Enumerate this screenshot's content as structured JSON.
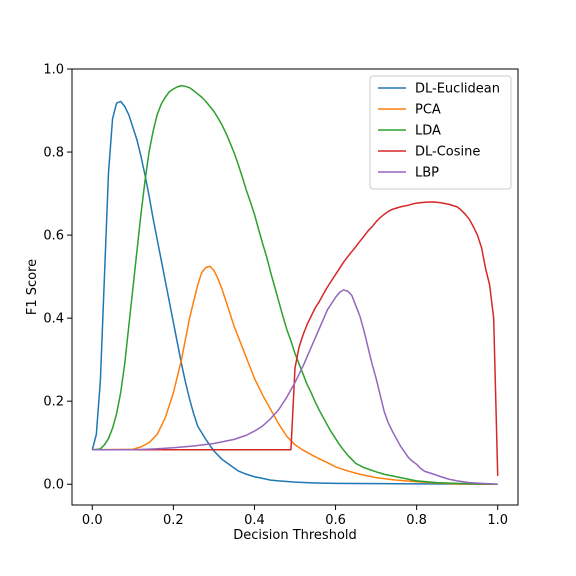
{
  "chart_data": {
    "type": "line",
    "xlabel": "Decision Threshold",
    "ylabel": "F1 Score",
    "xlim": [
      -0.05,
      1.05
    ],
    "ylim": [
      -0.05,
      1.0
    ],
    "xticks": [
      "0.0",
      "0.2",
      "0.4",
      "0.6",
      "0.8",
      "1.0"
    ],
    "yticks": [
      "0.0",
      "0.2",
      "0.4",
      "0.6",
      "0.8",
      "1.0"
    ],
    "grid": false,
    "legend_position": "top-right",
    "series": [
      {
        "name": "DL-Euclidean",
        "color": "#1f77b4",
        "points": [
          [
            0.0,
            0.083
          ],
          [
            0.01,
            0.12
          ],
          [
            0.02,
            0.25
          ],
          [
            0.03,
            0.5
          ],
          [
            0.04,
            0.75
          ],
          [
            0.05,
            0.88
          ],
          [
            0.06,
            0.918
          ],
          [
            0.07,
            0.922
          ],
          [
            0.08,
            0.91
          ],
          [
            0.09,
            0.89
          ],
          [
            0.1,
            0.86
          ],
          [
            0.11,
            0.83
          ],
          [
            0.12,
            0.79
          ],
          [
            0.13,
            0.745
          ],
          [
            0.14,
            0.695
          ],
          [
            0.15,
            0.64
          ],
          [
            0.16,
            0.59
          ],
          [
            0.17,
            0.54
          ],
          [
            0.18,
            0.49
          ],
          [
            0.19,
            0.44
          ],
          [
            0.2,
            0.39
          ],
          [
            0.21,
            0.34
          ],
          [
            0.22,
            0.29
          ],
          [
            0.23,
            0.245
          ],
          [
            0.24,
            0.205
          ],
          [
            0.25,
            0.17
          ],
          [
            0.26,
            0.14
          ],
          [
            0.28,
            0.108
          ],
          [
            0.3,
            0.08
          ],
          [
            0.32,
            0.06
          ],
          [
            0.34,
            0.046
          ],
          [
            0.36,
            0.032
          ],
          [
            0.38,
            0.024
          ],
          [
            0.4,
            0.018
          ],
          [
            0.42,
            0.014
          ],
          [
            0.44,
            0.01
          ],
          [
            0.46,
            0.008
          ],
          [
            0.5,
            0.005
          ],
          [
            0.55,
            0.003
          ],
          [
            0.6,
            0.002
          ],
          [
            0.7,
            0.0015
          ],
          [
            0.8,
            0.001
          ],
          [
            0.9,
            0.0005
          ],
          [
            1.0,
            0.0
          ]
        ]
      },
      {
        "name": "PCA",
        "color": "#ff7f0e",
        "points": [
          [
            0.0,
            0.083
          ],
          [
            0.1,
            0.084
          ],
          [
            0.12,
            0.09
          ],
          [
            0.14,
            0.1
          ],
          [
            0.16,
            0.12
          ],
          [
            0.18,
            0.16
          ],
          [
            0.2,
            0.22
          ],
          [
            0.22,
            0.3
          ],
          [
            0.24,
            0.4
          ],
          [
            0.26,
            0.48
          ],
          [
            0.27,
            0.51
          ],
          [
            0.28,
            0.522
          ],
          [
            0.29,
            0.525
          ],
          [
            0.3,
            0.515
          ],
          [
            0.31,
            0.495
          ],
          [
            0.32,
            0.47
          ],
          [
            0.33,
            0.44
          ],
          [
            0.34,
            0.41
          ],
          [
            0.35,
            0.38
          ],
          [
            0.36,
            0.355
          ],
          [
            0.37,
            0.33
          ],
          [
            0.38,
            0.305
          ],
          [
            0.39,
            0.28
          ],
          [
            0.4,
            0.255
          ],
          [
            0.42,
            0.215
          ],
          [
            0.44,
            0.18
          ],
          [
            0.46,
            0.145
          ],
          [
            0.48,
            0.115
          ],
          [
            0.5,
            0.095
          ],
          [
            0.52,
            0.082
          ],
          [
            0.55,
            0.066
          ],
          [
            0.58,
            0.052
          ],
          [
            0.6,
            0.042
          ],
          [
            0.63,
            0.032
          ],
          [
            0.66,
            0.024
          ],
          [
            0.7,
            0.016
          ],
          [
            0.75,
            0.01
          ],
          [
            0.8,
            0.006
          ],
          [
            0.85,
            0.003
          ],
          [
            0.9,
            0.001
          ],
          [
            1.0,
            0.0
          ]
        ]
      },
      {
        "name": "LDA",
        "color": "#2ca02c",
        "points": [
          [
            0.0,
            0.083
          ],
          [
            0.02,
            0.085
          ],
          [
            0.03,
            0.095
          ],
          [
            0.04,
            0.11
          ],
          [
            0.05,
            0.135
          ],
          [
            0.06,
            0.17
          ],
          [
            0.07,
            0.22
          ],
          [
            0.08,
            0.29
          ],
          [
            0.09,
            0.38
          ],
          [
            0.1,
            0.47
          ],
          [
            0.11,
            0.56
          ],
          [
            0.12,
            0.65
          ],
          [
            0.13,
            0.73
          ],
          [
            0.14,
            0.8
          ],
          [
            0.15,
            0.85
          ],
          [
            0.16,
            0.89
          ],
          [
            0.17,
            0.915
          ],
          [
            0.18,
            0.932
          ],
          [
            0.19,
            0.945
          ],
          [
            0.2,
            0.952
          ],
          [
            0.21,
            0.957
          ],
          [
            0.22,
            0.96
          ],
          [
            0.23,
            0.958
          ],
          [
            0.24,
            0.955
          ],
          [
            0.25,
            0.948
          ],
          [
            0.26,
            0.94
          ],
          [
            0.27,
            0.932
          ],
          [
            0.28,
            0.922
          ],
          [
            0.29,
            0.91
          ],
          [
            0.3,
            0.898
          ],
          [
            0.31,
            0.882
          ],
          [
            0.32,
            0.865
          ],
          [
            0.33,
            0.845
          ],
          [
            0.34,
            0.822
          ],
          [
            0.35,
            0.798
          ],
          [
            0.36,
            0.77
          ],
          [
            0.37,
            0.74
          ],
          [
            0.38,
            0.708
          ],
          [
            0.39,
            0.68
          ],
          [
            0.4,
            0.65
          ],
          [
            0.41,
            0.615
          ],
          [
            0.42,
            0.58
          ],
          [
            0.43,
            0.548
          ],
          [
            0.44,
            0.51
          ],
          [
            0.45,
            0.475
          ],
          [
            0.46,
            0.44
          ],
          [
            0.47,
            0.405
          ],
          [
            0.48,
            0.372
          ],
          [
            0.49,
            0.345
          ],
          [
            0.5,
            0.315
          ],
          [
            0.51,
            0.29
          ],
          [
            0.52,
            0.265
          ],
          [
            0.53,
            0.24
          ],
          [
            0.54,
            0.22
          ],
          [
            0.55,
            0.198
          ],
          [
            0.56,
            0.178
          ],
          [
            0.57,
            0.16
          ],
          [
            0.58,
            0.142
          ],
          [
            0.59,
            0.125
          ],
          [
            0.6,
            0.11
          ],
          [
            0.61,
            0.095
          ],
          [
            0.62,
            0.082
          ],
          [
            0.63,
            0.07
          ],
          [
            0.64,
            0.06
          ],
          [
            0.65,
            0.05
          ],
          [
            0.67,
            0.04
          ],
          [
            0.7,
            0.03
          ],
          [
            0.72,
            0.024
          ],
          [
            0.75,
            0.018
          ],
          [
            0.78,
            0.012
          ],
          [
            0.8,
            0.008
          ],
          [
            0.85,
            0.004
          ],
          [
            0.9,
            0.002
          ],
          [
            1.0,
            0.0
          ]
        ]
      },
      {
        "name": "DL-Cosine",
        "color": "#d62728",
        "points": [
          [
            0.0,
            0.083
          ],
          [
            0.49,
            0.083
          ],
          [
            0.5,
            0.28
          ],
          [
            0.51,
            0.33
          ],
          [
            0.52,
            0.36
          ],
          [
            0.53,
            0.385
          ],
          [
            0.54,
            0.405
          ],
          [
            0.55,
            0.425
          ],
          [
            0.56,
            0.44
          ],
          [
            0.57,
            0.458
          ],
          [
            0.58,
            0.475
          ],
          [
            0.59,
            0.49
          ],
          [
            0.6,
            0.505
          ],
          [
            0.61,
            0.52
          ],
          [
            0.62,
            0.535
          ],
          [
            0.63,
            0.548
          ],
          [
            0.64,
            0.56
          ],
          [
            0.65,
            0.572
          ],
          [
            0.66,
            0.585
          ],
          [
            0.67,
            0.597
          ],
          [
            0.68,
            0.61
          ],
          [
            0.69,
            0.62
          ],
          [
            0.7,
            0.632
          ],
          [
            0.71,
            0.642
          ],
          [
            0.72,
            0.65
          ],
          [
            0.73,
            0.657
          ],
          [
            0.74,
            0.662
          ],
          [
            0.75,
            0.665
          ],
          [
            0.76,
            0.668
          ],
          [
            0.77,
            0.67
          ],
          [
            0.78,
            0.672
          ],
          [
            0.79,
            0.675
          ],
          [
            0.8,
            0.677
          ],
          [
            0.82,
            0.679
          ],
          [
            0.84,
            0.68
          ],
          [
            0.86,
            0.678
          ],
          [
            0.88,
            0.674
          ],
          [
            0.9,
            0.668
          ],
          [
            0.91,
            0.66
          ],
          [
            0.92,
            0.65
          ],
          [
            0.93,
            0.638
          ],
          [
            0.94,
            0.62
          ],
          [
            0.95,
            0.6
          ],
          [
            0.96,
            0.57
          ],
          [
            0.97,
            0.52
          ],
          [
            0.98,
            0.48
          ],
          [
            0.99,
            0.4
          ],
          [
            1.0,
            0.02
          ]
        ]
      },
      {
        "name": "LBP",
        "color": "#9467bd",
        "points": [
          [
            0.0,
            0.083
          ],
          [
            0.1,
            0.083
          ],
          [
            0.15,
            0.085
          ],
          [
            0.2,
            0.088
          ],
          [
            0.25,
            0.092
          ],
          [
            0.3,
            0.098
          ],
          [
            0.35,
            0.108
          ],
          [
            0.38,
            0.118
          ],
          [
            0.4,
            0.128
          ],
          [
            0.42,
            0.14
          ],
          [
            0.44,
            0.158
          ],
          [
            0.46,
            0.18
          ],
          [
            0.48,
            0.21
          ],
          [
            0.5,
            0.245
          ],
          [
            0.52,
            0.285
          ],
          [
            0.54,
            0.33
          ],
          [
            0.56,
            0.375
          ],
          [
            0.58,
            0.42
          ],
          [
            0.6,
            0.45
          ],
          [
            0.61,
            0.462
          ],
          [
            0.62,
            0.468
          ],
          [
            0.63,
            0.465
          ],
          [
            0.64,
            0.455
          ],
          [
            0.65,
            0.43
          ],
          [
            0.66,
            0.405
          ],
          [
            0.67,
            0.37
          ],
          [
            0.68,
            0.33
          ],
          [
            0.69,
            0.29
          ],
          [
            0.7,
            0.255
          ],
          [
            0.71,
            0.215
          ],
          [
            0.72,
            0.175
          ],
          [
            0.73,
            0.148
          ],
          [
            0.74,
            0.128
          ],
          [
            0.75,
            0.11
          ],
          [
            0.76,
            0.092
          ],
          [
            0.77,
            0.078
          ],
          [
            0.78,
            0.064
          ],
          [
            0.79,
            0.055
          ],
          [
            0.8,
            0.048
          ],
          [
            0.81,
            0.038
          ],
          [
            0.82,
            0.031
          ],
          [
            0.84,
            0.025
          ],
          [
            0.86,
            0.018
          ],
          [
            0.88,
            0.012
          ],
          [
            0.9,
            0.008
          ],
          [
            0.93,
            0.004
          ],
          [
            0.96,
            0.002
          ],
          [
            1.0,
            0.0
          ]
        ]
      }
    ]
  }
}
